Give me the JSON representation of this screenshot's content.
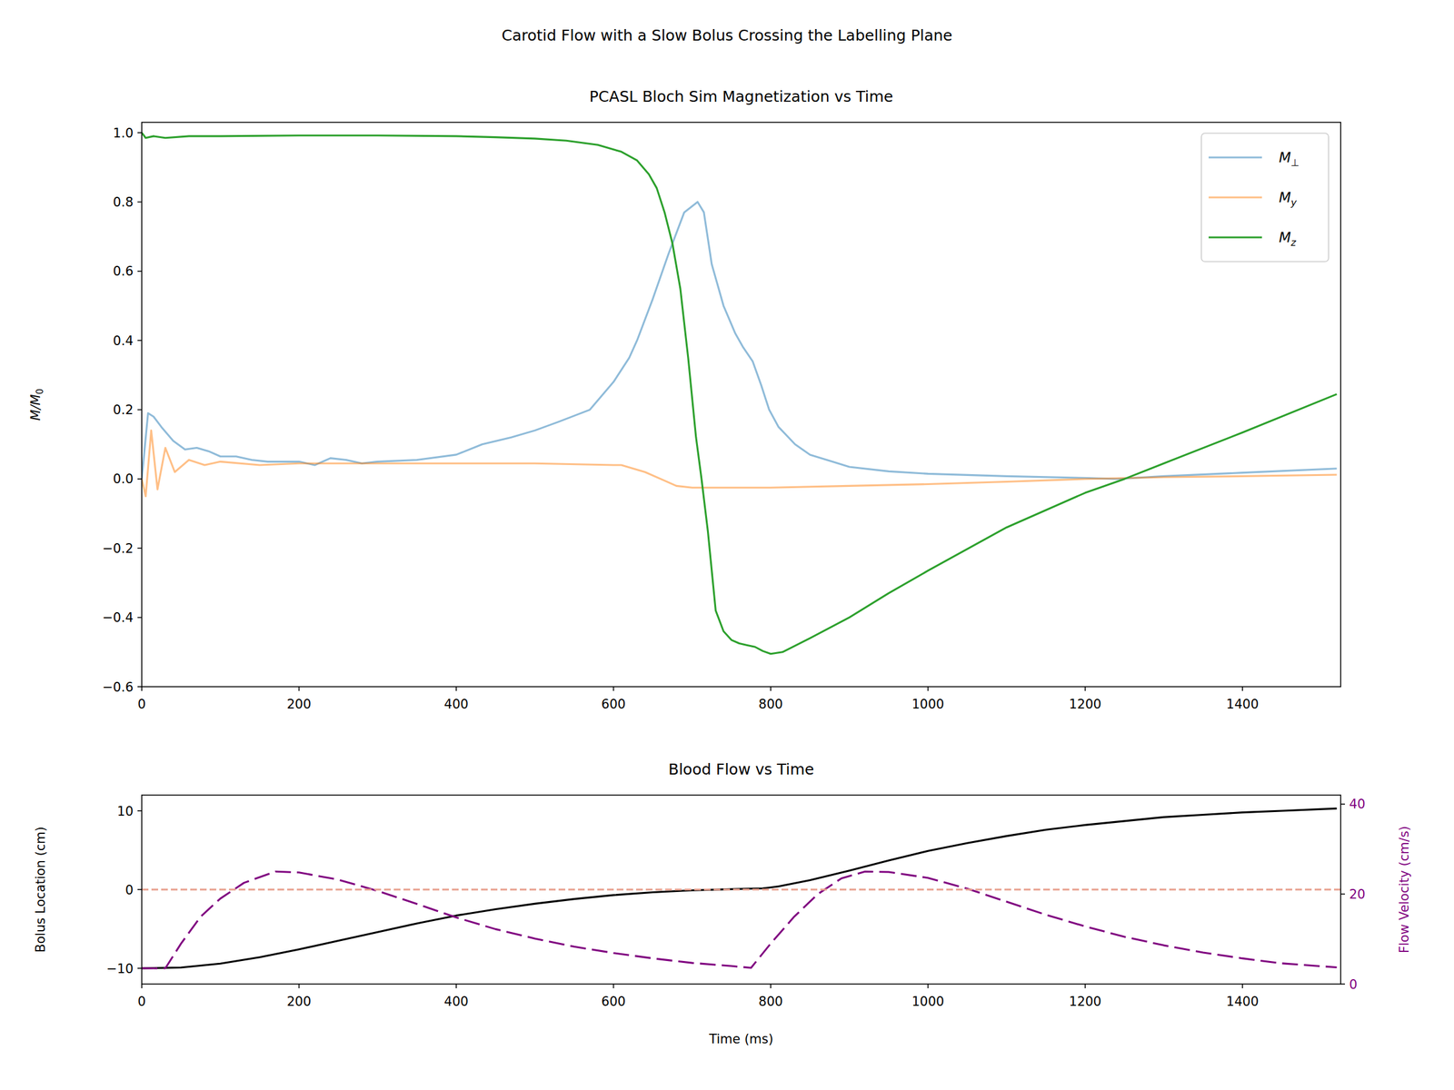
{
  "title": "Carotid Flow with a Slow Bolus Crossing the Labelling Plane",
  "chart_data": [
    {
      "type": "line",
      "title": "PCASL Bloch Sim Magnetization vs Time",
      "y_label": "M/M0",
      "xlim": [
        0,
        1525
      ],
      "xticks": [
        0,
        200,
        400,
        600,
        800,
        1000,
        1200,
        1400
      ],
      "ylim": [
        -0.6,
        1.03
      ],
      "yticks": [
        {
          "value": -0.6,
          "label": "−0.6"
        },
        {
          "value": -0.4,
          "label": "−0.4"
        },
        {
          "value": -0.2,
          "label": "−0.2"
        },
        {
          "value": 0,
          "label": "0.0"
        },
        0.2,
        0.4,
        0.6,
        0.8,
        {
          "value": 1,
          "label": "1.0"
        }
      ],
      "legend": "upper right",
      "series": [
        {
          "name": "M⊥",
          "color": "#1f77b480",
          "x": [
            0,
            8,
            15,
            25,
            40,
            55,
            70,
            85,
            100,
            120,
            140,
            160,
            180,
            200,
            220,
            240,
            260,
            280,
            300,
            350,
            400,
            433,
            470,
            500,
            530,
            570,
            600,
            620,
            630,
            650,
            670,
            690,
            707,
            715,
            725,
            740,
            755,
            765,
            777,
            788,
            798,
            810,
            831,
            850,
            900,
            950,
            1000,
            1100,
            1200,
            1240,
            1300,
            1400,
            1520
          ],
          "values": [
            0.0,
            0.19,
            0.18,
            0.15,
            0.11,
            0.085,
            0.09,
            0.08,
            0.065,
            0.065,
            0.055,
            0.05,
            0.05,
            0.05,
            0.04,
            0.06,
            0.055,
            0.045,
            0.05,
            0.055,
            0.07,
            0.1,
            0.12,
            0.14,
            0.165,
            0.2,
            0.28,
            0.35,
            0.4,
            0.52,
            0.65,
            0.77,
            0.8,
            0.77,
            0.62,
            0.5,
            0.42,
            0.38,
            0.34,
            0.27,
            0.2,
            0.15,
            0.1,
            0.07,
            0.035,
            0.022,
            0.015,
            0.008,
            0.003,
            0.0,
            0.008,
            0.018,
            0.03
          ]
        },
        {
          "name": "My",
          "color": "#ff7f0e80",
          "x": [
            0,
            5,
            12,
            20,
            30,
            42,
            60,
            80,
            100,
            150,
            200,
            250,
            300,
            400,
            500,
            600,
            610,
            640,
            660,
            680,
            700,
            800,
            900,
            1000,
            1100,
            1200,
            1300,
            1400,
            1520
          ],
          "values": [
            0.0,
            -0.05,
            0.14,
            -0.03,
            0.09,
            0.02,
            0.055,
            0.04,
            0.05,
            0.04,
            0.045,
            0.045,
            0.045,
            0.045,
            0.045,
            0.04,
            0.04,
            0.02,
            0.0,
            -0.02,
            -0.025,
            -0.025,
            -0.02,
            -0.015,
            -0.008,
            0.0,
            0.005,
            0.008,
            0.012
          ]
        },
        {
          "name": "Mz",
          "color": "#2ca02c",
          "x": [
            0,
            5,
            15,
            30,
            60,
            100,
            200,
            300,
            400,
            450,
            500,
            540,
            580,
            610,
            630,
            645,
            655,
            665,
            675,
            685,
            695,
            705,
            712,
            720,
            730,
            740,
            750,
            760,
            770,
            780,
            790,
            800,
            815,
            850,
            900,
            950,
            1000,
            1100,
            1200,
            1250,
            1300,
            1400,
            1520
          ],
          "values": [
            1.0,
            0.985,
            0.99,
            0.985,
            0.99,
            0.99,
            0.992,
            0.992,
            0.99,
            0.987,
            0.983,
            0.977,
            0.965,
            0.945,
            0.92,
            0.88,
            0.84,
            0.77,
            0.68,
            0.55,
            0.35,
            0.12,
            0.0,
            -0.15,
            -0.38,
            -0.44,
            -0.465,
            -0.475,
            -0.48,
            -0.485,
            -0.497,
            -0.505,
            -0.5,
            -0.46,
            -0.4,
            -0.33,
            -0.265,
            -0.14,
            -0.04,
            0.0,
            0.045,
            0.134,
            0.245
          ]
        }
      ]
    },
    {
      "type": "line",
      "title": "Blood Flow vs Time",
      "x_label": "Time (ms)",
      "y_label": "Bolus Location (cm)",
      "y2_label": "Flow Velocity (cm/s)",
      "xlim": [
        0,
        1525
      ],
      "xticks": [
        0,
        200,
        400,
        600,
        800,
        1000,
        1200,
        1400
      ],
      "ylim": [
        -12,
        12
      ],
      "yticks": [
        {
          "value": -10,
          "label": "−10"
        },
        0,
        10
      ],
      "y2lim": [
        0,
        42
      ],
      "y2ticks": [
        0,
        20,
        40
      ],
      "series": [
        {
          "color": "#000000",
          "x": [
            0,
            50,
            100,
            150,
            200,
            250,
            300,
            350,
            400,
            450,
            500,
            550,
            600,
            650,
            700,
            750,
            790,
            810,
            850,
            900,
            950,
            1000,
            1050,
            1100,
            1150,
            1200,
            1250,
            1300,
            1350,
            1400,
            1450,
            1520
          ],
          "values": [
            -10,
            -9.9,
            -9.4,
            -8.6,
            -7.6,
            -6.5,
            -5.4,
            -4.3,
            -3.3,
            -2.5,
            -1.8,
            -1.2,
            -0.7,
            -0.35,
            -0.1,
            0.05,
            0.15,
            0.4,
            1.2,
            2.4,
            3.7,
            4.9,
            5.9,
            6.8,
            7.6,
            8.2,
            8.7,
            9.2,
            9.5,
            9.8,
            10.0,
            10.3
          ]
        },
        {
          "color": "#800080",
          "axis": "y2",
          "line_style": "long_dashed",
          "x": [
            0,
            30,
            50,
            75,
            100,
            130,
            170,
            200,
            250,
            300,
            350,
            400,
            450,
            500,
            550,
            600,
            650,
            700,
            750,
            775,
            800,
            830,
            860,
            890,
            920,
            950,
            1000,
            1050,
            1100,
            1150,
            1200,
            1250,
            1300,
            1350,
            1400,
            1450,
            1520
          ],
          "values": [
            3.5,
            3.5,
            9,
            15,
            19,
            22.5,
            25,
            24.8,
            23.2,
            20.7,
            17.8,
            14.8,
            12.2,
            10.1,
            8.3,
            6.9,
            5.7,
            4.7,
            4.0,
            3.6,
            9,
            15,
            20,
            23.5,
            25,
            24.9,
            23.6,
            21.2,
            18.3,
            15.4,
            12.8,
            10.5,
            8.6,
            7.0,
            5.7,
            4.6,
            3.7
          ]
        },
        {
          "color": "#e8a08e",
          "line_style": "dashed",
          "x": [
            0,
            1525
          ],
          "values": [
            0,
            0
          ]
        }
      ]
    }
  ]
}
